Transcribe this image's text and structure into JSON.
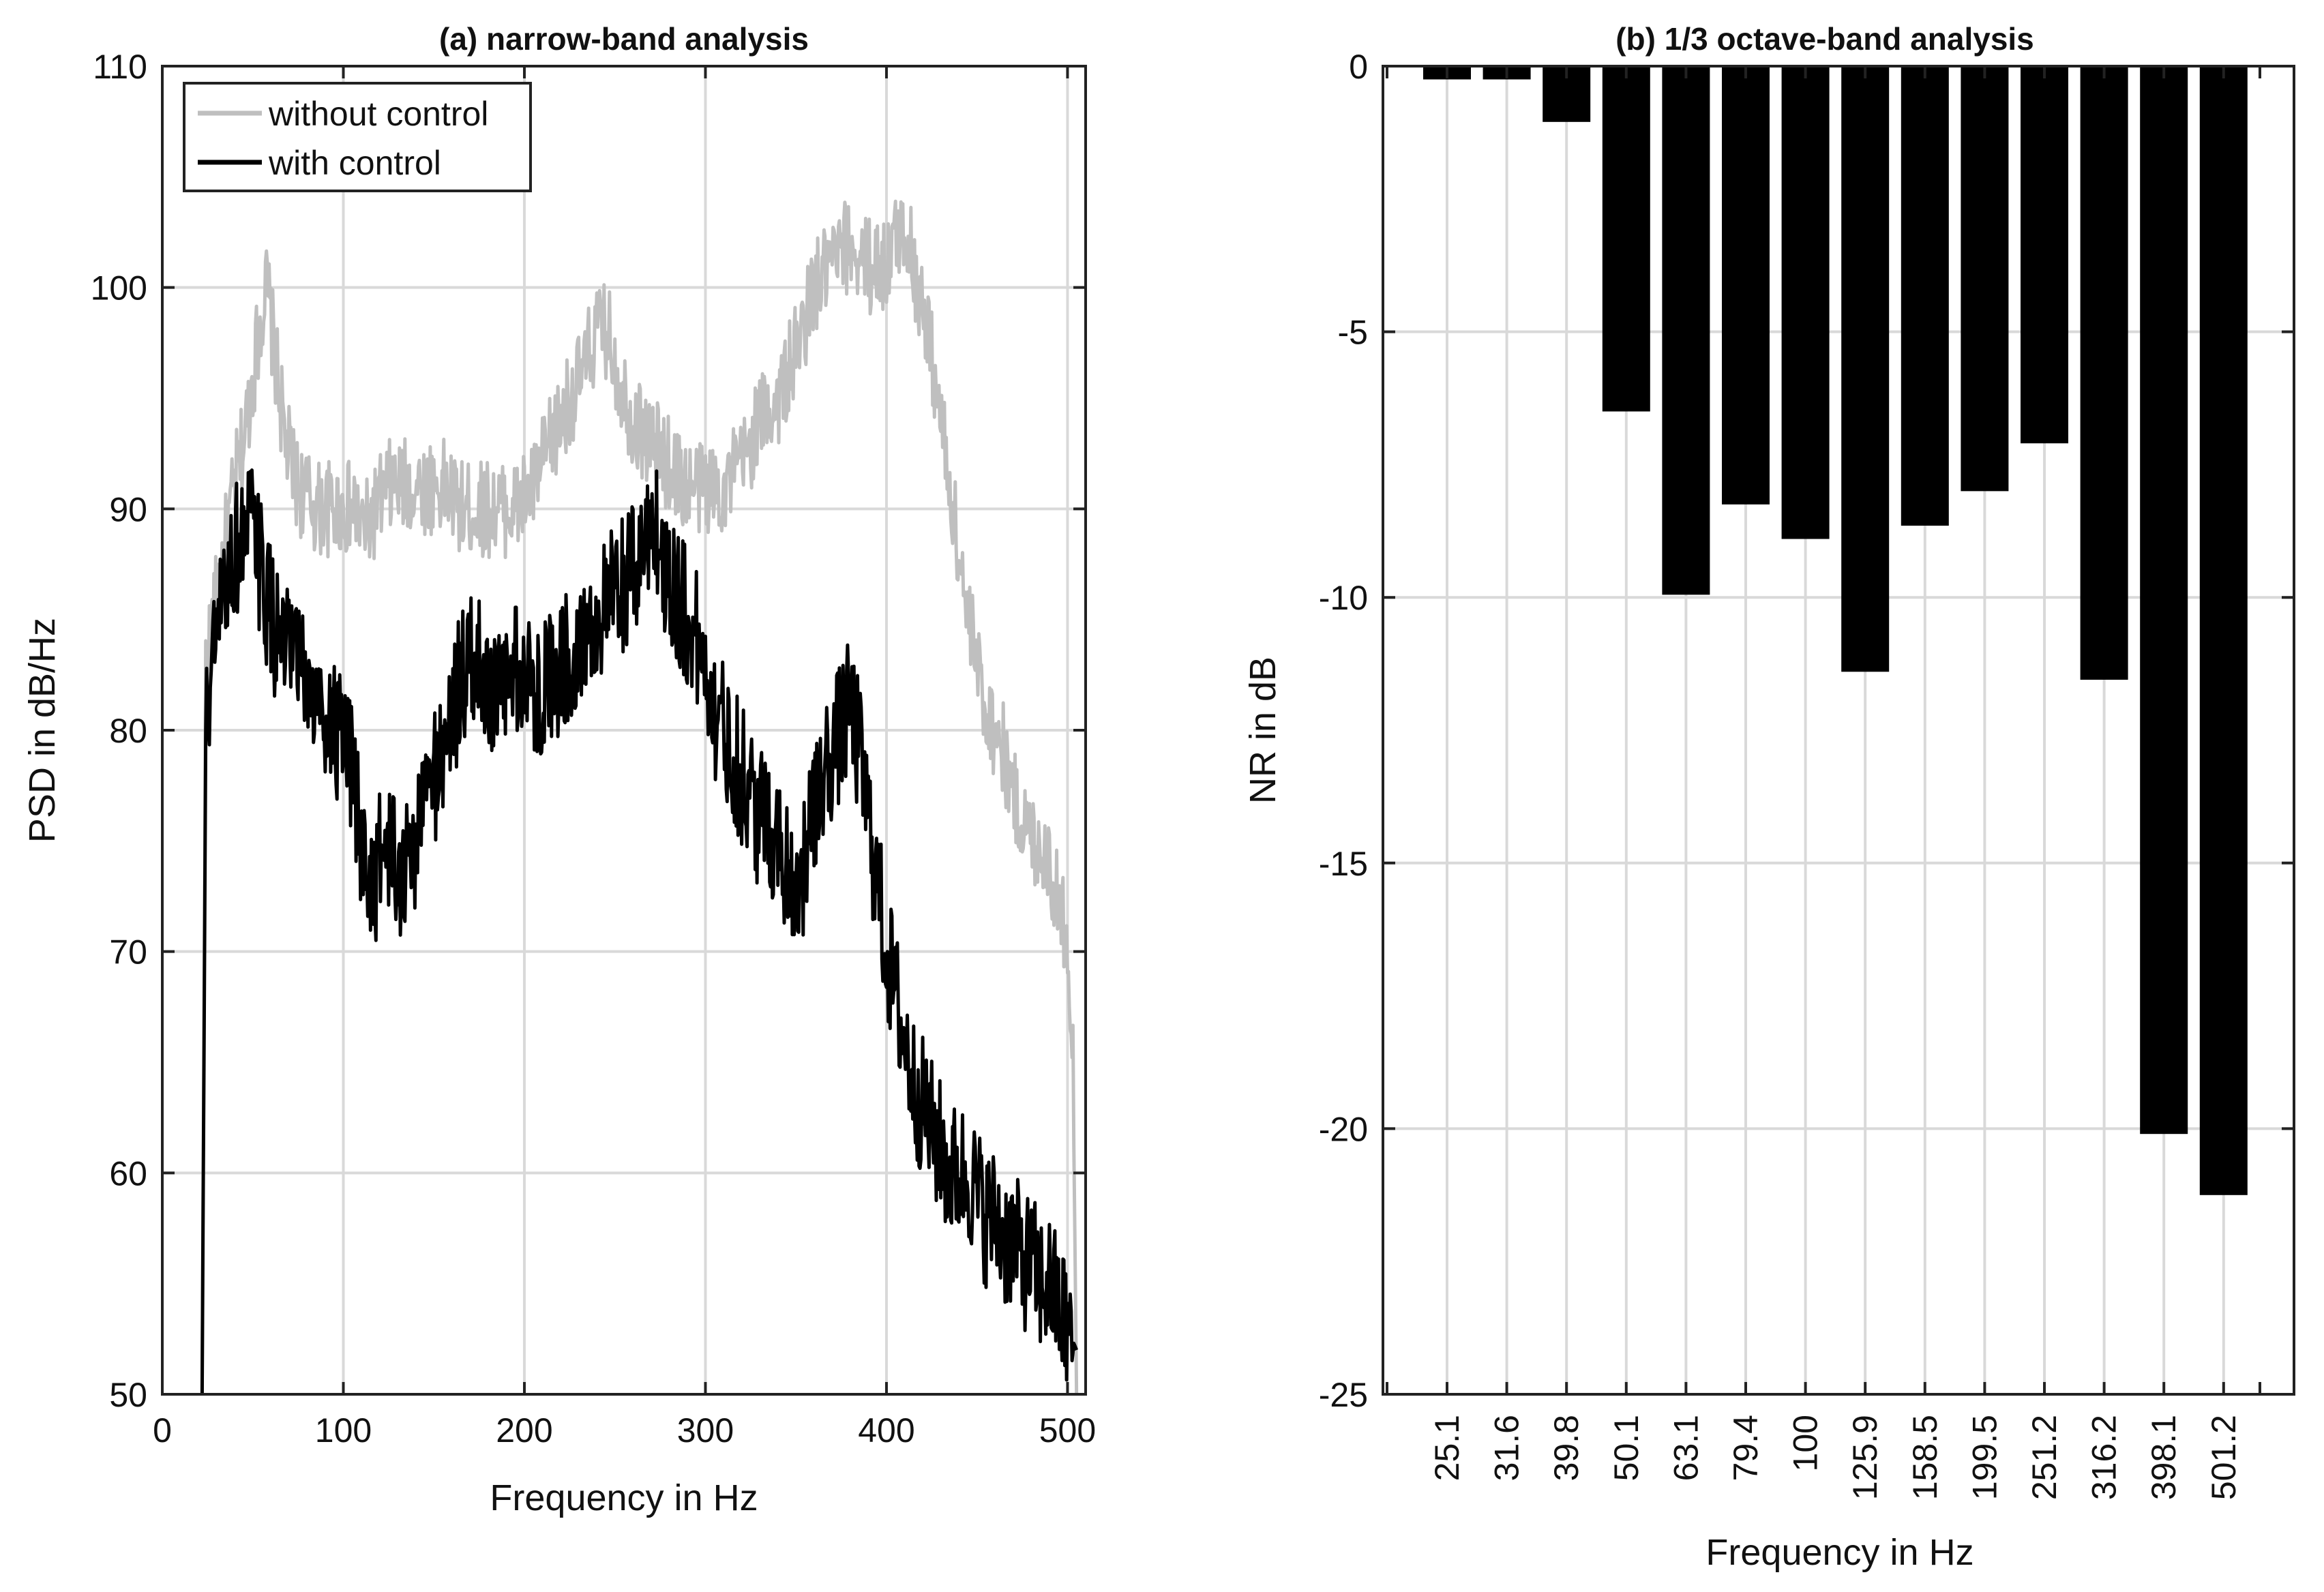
{
  "chart_data": [
    {
      "type": "line",
      "title": "(a) narrow-band analysis",
      "xlabel": "Frequency in Hz",
      "ylabel": "PSD in dB/Hz",
      "xlim": [
        0,
        510
      ],
      "ylim": [
        50,
        110
      ],
      "xticks": [
        0,
        100,
        200,
        300,
        400,
        500
      ],
      "yticks": [
        50,
        60,
        70,
        80,
        90,
        100,
        110
      ],
      "grid": true,
      "legend": "top-left",
      "series": [
        {
          "name": "without control",
          "color": "#bfbfbf",
          "x": [
            22,
            24,
            30,
            36,
            40,
            45,
            50,
            55,
            58,
            62,
            68,
            75,
            85,
            95,
            105,
            112,
            118,
            125,
            135,
            145,
            155,
            165,
            175,
            185,
            195,
            205,
            215,
            225,
            232,
            240,
            246,
            252,
            260,
            270,
            280,
            290,
            300,
            310,
            320,
            330,
            340,
            350,
            360,
            370,
            380,
            390,
            400,
            405,
            410,
            415,
            420,
            425,
            430,
            435,
            440,
            445,
            450,
            455,
            460,
            465,
            470,
            475,
            480,
            485,
            490,
            495,
            500,
            503,
            505
          ],
          "y": [
            50,
            83,
            86,
            89,
            91,
            93,
            96,
            99,
            100,
            97,
            93,
            91,
            90,
            90,
            90,
            89,
            90,
            91,
            91,
            91,
            91,
            90,
            90,
            90,
            90,
            91,
            93,
            95,
            96,
            98,
            98,
            96,
            94,
            93,
            92,
            91,
            91,
            91,
            92,
            94,
            95,
            97,
            100,
            101,
            102,
            101,
            101,
            102,
            103,
            101,
            99,
            97,
            94,
            91,
            88,
            85,
            83,
            81,
            80,
            79,
            77,
            76,
            75,
            75,
            74,
            72,
            71,
            65,
            50
          ]
        },
        {
          "name": "with control",
          "color": "#000000",
          "x": [
            22,
            24,
            28,
            32,
            36,
            40,
            45,
            50,
            55,
            60,
            65,
            70,
            75,
            80,
            85,
            90,
            95,
            100,
            105,
            108,
            112,
            116,
            120,
            125,
            130,
            135,
            140,
            145,
            150,
            155,
            160,
            165,
            170,
            175,
            180,
            185,
            190,
            195,
            200,
            210,
            220,
            230,
            240,
            250,
            260,
            265,
            270,
            275,
            280,
            285,
            290,
            295,
            300,
            305,
            310,
            315,
            320,
            325,
            330,
            335,
            340,
            345,
            350,
            355,
            360,
            365,
            370,
            375,
            380,
            385,
            390,
            395,
            400,
            405,
            410,
            415,
            420,
            425,
            430,
            435,
            440,
            445,
            450,
            455,
            460,
            465,
            470,
            475,
            480,
            485,
            490,
            495,
            500,
            505
          ],
          "y": [
            50,
            80,
            83,
            85,
            87,
            88,
            89,
            89,
            87,
            85,
            84,
            83,
            83,
            82,
            81,
            81,
            80,
            79,
            78,
            76,
            74,
            73,
            74,
            75,
            73,
            74,
            75,
            77,
            78,
            79,
            81,
            82,
            83,
            83,
            82,
            81,
            82,
            83,
            82,
            82,
            83,
            84,
            85,
            86,
            87,
            88,
            90,
            88,
            87,
            86,
            85,
            84,
            83,
            81,
            80,
            79,
            78,
            77,
            76,
            76,
            75,
            74,
            73,
            74,
            76,
            78,
            79,
            80,
            81,
            79,
            76,
            73,
            70,
            68,
            66,
            64,
            63,
            62,
            61,
            60,
            60,
            60,
            59,
            58,
            58,
            57,
            57,
            56,
            56,
            55,
            55,
            54,
            53,
            52
          ]
        }
      ]
    },
    {
      "type": "bar",
      "title": "(b) 1/3 octave-band analysis",
      "xlabel": "Frequency in Hz",
      "ylabel": "NR in dB",
      "ylim": [
        -25,
        0
      ],
      "yticks": [
        0,
        -5,
        -10,
        -15,
        -20,
        -25
      ],
      "grid": true,
      "categories": [
        "25.1",
        "31.6",
        "39.8",
        "50.1",
        "63.1",
        "79.4",
        "100",
        "125.9",
        "158.5",
        "199.5",
        "251.2",
        "316.2",
        "398.1",
        "501.2"
      ],
      "values": [
        -0.25,
        -0.25,
        -1.05,
        -6.5,
        -9.95,
        -8.25,
        -8.9,
        -11.4,
        -8.65,
        -8.0,
        -7.1,
        -11.55,
        -20.1,
        -21.25
      ],
      "color": "#000000"
    }
  ]
}
